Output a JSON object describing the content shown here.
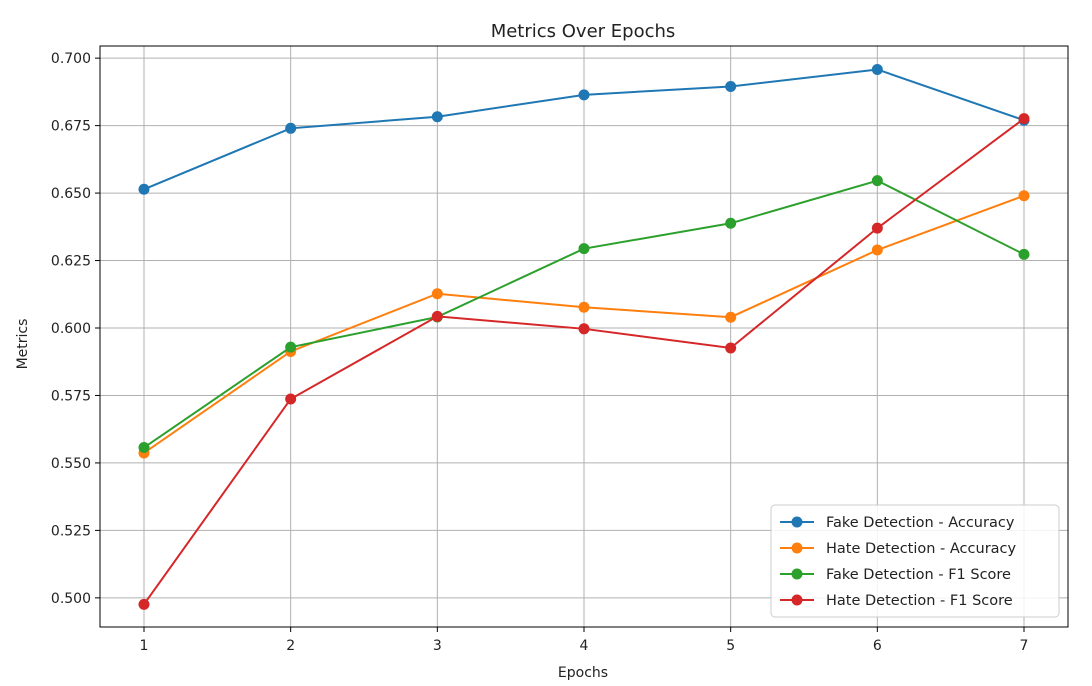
{
  "chart_data": {
    "type": "line",
    "title": "Metrics Over Epochs",
    "xlabel": "Epochs",
    "ylabel": "Metrics",
    "x": [
      1,
      2,
      3,
      4,
      5,
      6,
      7
    ],
    "xticks": [
      "1",
      "2",
      "3",
      "4",
      "5",
      "6",
      "7"
    ],
    "ylim": [
      0.4892,
      0.7045
    ],
    "yticks": [
      0.5,
      0.525,
      0.55,
      0.575,
      0.6,
      0.625,
      0.65,
      0.675,
      0.7
    ],
    "ytick_labels": [
      "0.500",
      "0.525",
      "0.550",
      "0.575",
      "0.600",
      "0.625",
      "0.650",
      "0.675",
      "0.700"
    ],
    "grid": true,
    "legend_position": "lower-right",
    "series": [
      {
        "name": "Fake Detection - Accuracy",
        "color": "#1f77b4",
        "values": [
          0.6514,
          0.674,
          0.6783,
          0.6864,
          0.6895,
          0.6958,
          0.677
        ]
      },
      {
        "name": "Hate Detection - Accuracy",
        "color": "#ff7f0e",
        "values": [
          0.5537,
          0.5913,
          0.6127,
          0.6077,
          0.604,
          0.6289,
          0.649
        ]
      },
      {
        "name": "Fake Detection - F1 Score",
        "color": "#2ca02c",
        "values": [
          0.5557,
          0.5929,
          0.6041,
          0.6294,
          0.6388,
          0.6546,
          0.6273
        ]
      },
      {
        "name": "Hate Detection - F1 Score",
        "color": "#d62728",
        "values": [
          0.4976,
          0.5737,
          0.6043,
          0.5997,
          0.5926,
          0.637,
          0.6776
        ]
      }
    ]
  }
}
